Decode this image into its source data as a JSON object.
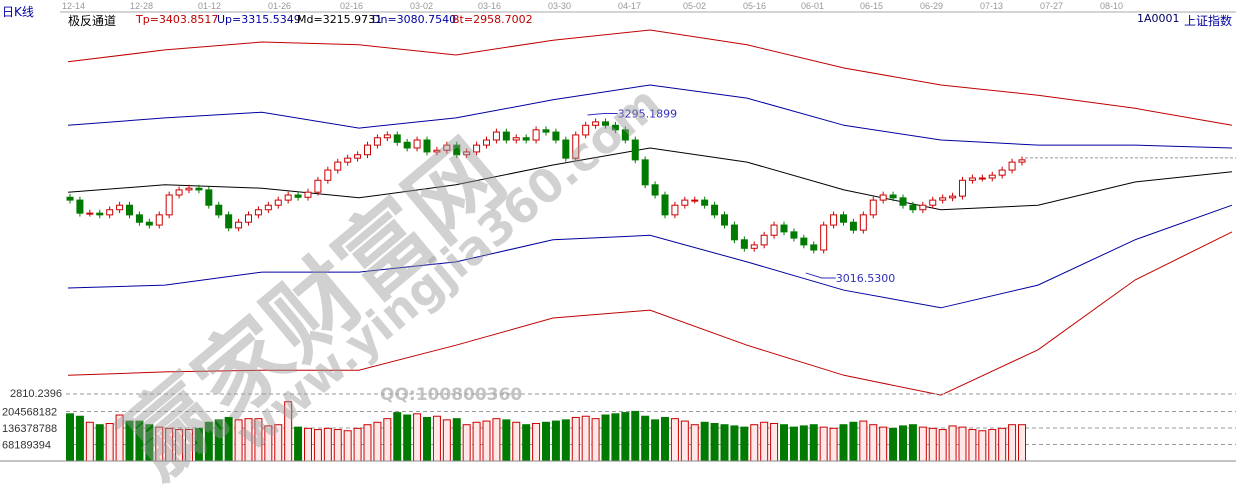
{
  "header": {
    "period": "日K线",
    "indicator": "极反通道",
    "tp": "Tp=3403.8517",
    "up": "Up=3315.5349",
    "md": "Md=3215.9731",
    "dn": "Dn=3080.7540",
    "bt": "Bt=2958.7002",
    "symbol": "1A0001",
    "name": "上证指数"
  },
  "watermark": {
    "brand": "赢家财富网",
    "url": "www.yingjia360.com",
    "qq": "QQ:100800360"
  },
  "colors": {
    "up": "#cc0000",
    "down": "#007a00",
    "tp": "#c00000",
    "up_band": "#0000a0",
    "md": "#000000",
    "dn": "#0000a0",
    "bt": "#c00000",
    "label": "#3030c0"
  },
  "chart_data": [
    {
      "type": "candlestick",
      "date_ticks": [
        "12-14",
        "12-28",
        "01-12",
        "01-26",
        "02-16",
        "03-02",
        "03-16",
        "03-30",
        "04-17",
        "05-02",
        "05-16",
        "06-01",
        "06-15",
        "06-29",
        "07-13",
        "07-27",
        "08-10"
      ],
      "first_open": 3150,
      "closes": [
        3145,
        3122,
        3122,
        3119,
        3128,
        3136,
        3119,
        3106,
        3101,
        3119,
        3154,
        3163,
        3166,
        3163,
        3136,
        3119,
        3096,
        3106,
        3119,
        3128,
        3136,
        3145,
        3154,
        3150,
        3159,
        3180,
        3198,
        3212,
        3219,
        3225,
        3242,
        3255,
        3260,
        3247,
        3237,
        3251,
        3230,
        3233,
        3242,
        3225,
        3230,
        3242,
        3251,
        3265,
        3251,
        3255,
        3251,
        3269,
        3265,
        3251,
        3219,
        3260,
        3277,
        3283,
        3277,
        3269,
        3251,
        3216,
        3172,
        3154,
        3119,
        3136,
        3145,
        3145,
        3136,
        3119,
        3101,
        3075,
        3060,
        3066,
        3083,
        3101,
        3089,
        3078,
        3066,
        3057,
        3101,
        3119,
        3106,
        3092,
        3119,
        3145,
        3154,
        3149,
        3136,
        3128,
        3136,
        3145,
        3149,
        3152,
        3180,
        3184,
        3184,
        3189,
        3198,
        3212,
        3216
      ],
      "annotations": [
        {
          "text": "3295.1899",
          "price": 3295.1899
        },
        {
          "text": "3016.5300",
          "price": 3016.53
        }
      ],
      "channels": {
        "tp": [
          3389,
          3410,
          3424,
          3419,
          3401,
          3427,
          3445,
          3419,
          3378,
          3348,
          3330,
          3307,
          3277
        ],
        "up": [
          3277,
          3290,
          3300,
          3272,
          3290,
          3322,
          3348,
          3325,
          3277,
          3251,
          3242,
          3242,
          3237
        ],
        "md": [
          3159,
          3172,
          3166,
          3149,
          3172,
          3207,
          3237,
          3212,
          3163,
          3128,
          3136,
          3177,
          3195
        ],
        "dn": [
          2990,
          2995,
          3018,
          3018,
          3036,
          3075,
          3083,
          3036,
          2986,
          2955,
          2995,
          3075,
          3136
        ],
        "bt": [
          2836,
          2842,
          2845,
          2845,
          2889,
          2937,
          2951,
          2889,
          2836,
          2801,
          2881,
          3004,
          3089
        ]
      }
    },
    {
      "type": "bar",
      "title": "volume",
      "price_label": "2810.2396",
      "y_ticks": [
        "204568182",
        "136378788",
        "68189394"
      ],
      "values_millions": [
        195,
        185,
        160,
        150,
        155,
        190,
        165,
        165,
        150,
        140,
        135,
        130,
        130,
        135,
        160,
        170,
        180,
        170,
        175,
        175,
        145,
        150,
        245,
        140,
        135,
        130,
        135,
        130,
        125,
        135,
        150,
        160,
        175,
        200,
        190,
        195,
        180,
        185,
        170,
        175,
        150,
        160,
        165,
        175,
        170,
        160,
        150,
        155,
        160,
        165,
        170,
        180,
        185,
        175,
        190,
        195,
        200,
        205,
        185,
        170,
        180,
        175,
        165,
        150,
        160,
        155,
        150,
        145,
        140,
        150,
        160,
        155,
        150,
        140,
        145,
        150,
        140,
        135,
        150,
        160,
        165,
        150,
        140,
        135,
        145,
        150,
        140,
        135,
        130,
        145,
        140,
        130,
        125,
        130,
        135,
        150,
        150
      ]
    }
  ]
}
